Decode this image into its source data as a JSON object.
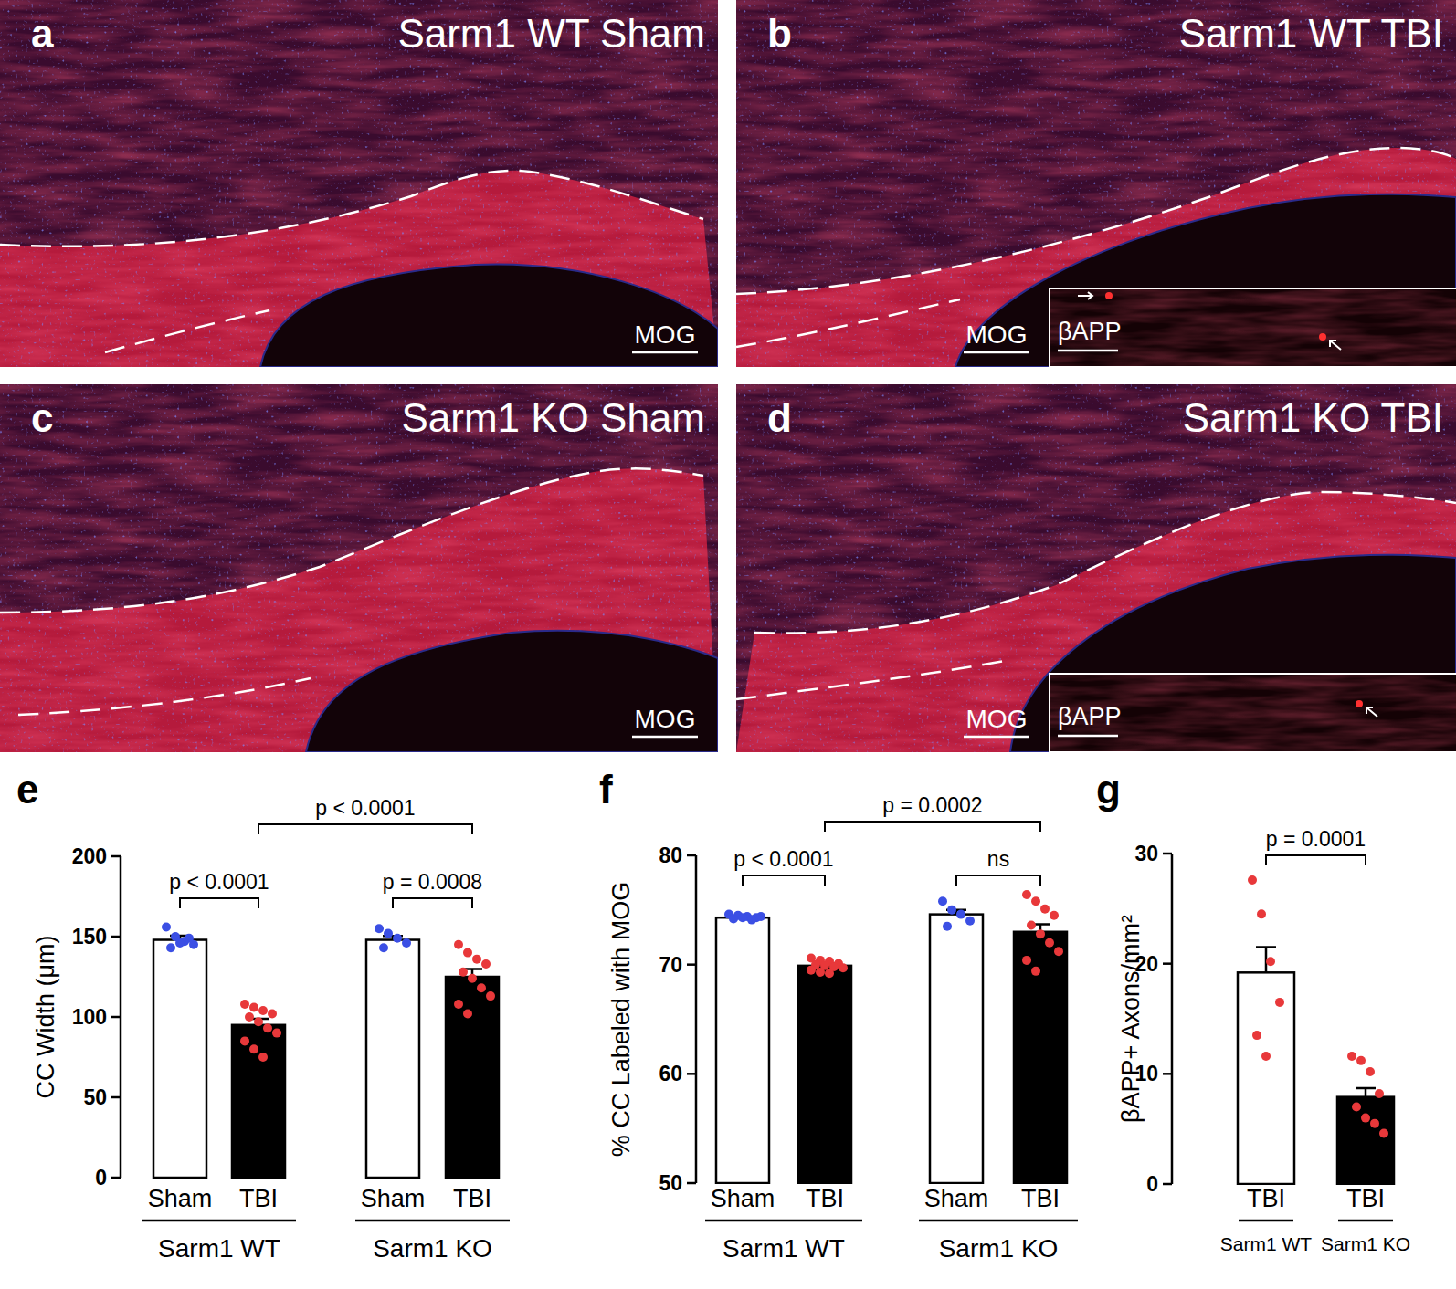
{
  "panels": [
    {
      "label": "a",
      "title": "Sarm1 WT Sham",
      "stain": "MOG"
    },
    {
      "label": "b",
      "title": "Sarm1 WT TBI",
      "stain": "MOG",
      "inset": "βAPP"
    },
    {
      "label": "c",
      "title": "Sarm1 KO Sham",
      "stain": "MOG"
    },
    {
      "label": "d",
      "title": "Sarm1 KO TBI",
      "stain": "MOG",
      "inset": "βAPP"
    }
  ],
  "chart_data": [
    {
      "type": "bar",
      "panel_label": "e",
      "y_label": "CC Width (μm)",
      "categories": [
        "Sham",
        "TBI",
        "Sham",
        "TBI"
      ],
      "group_labels": [
        "Sarm1 WT",
        "Sarm1 KO"
      ],
      "values": [
        148,
        95,
        148,
        125
      ],
      "errors": [
        2.5,
        3.8,
        2.4,
        4.8
      ],
      "colors": [
        "#ffffff",
        "#000000",
        "#ffffff",
        "#000000"
      ],
      "points": [
        [
          156,
          150,
          147,
          145,
          143,
          146,
          149
        ],
        [
          108,
          106,
          104,
          102,
          100,
          97,
          93,
          90,
          85,
          80,
          75
        ],
        [
          155,
          152,
          149,
          146,
          143
        ],
        [
          145,
          140,
          136,
          133,
          128,
          124,
          118,
          113,
          108,
          102
        ]
      ],
      "point_colors": [
        "#3b4fe4",
        "#e8383a",
        "#3b4fe4",
        "#e8383a"
      ],
      "comparisons": [
        {
          "from": 0,
          "to": 1,
          "label": "p < 0.0001"
        },
        {
          "from": 2,
          "to": 3,
          "label": "p = 0.0008"
        },
        {
          "from": 1,
          "to": 3,
          "label": "p < 0.0001"
        }
      ],
      "ylim": [
        0,
        200
      ],
      "yticks": [
        0,
        50,
        100,
        150,
        200
      ]
    },
    {
      "type": "bar",
      "panel_label": "f",
      "y_label": "% CC Labeled with MOG",
      "categories": [
        "Sham",
        "TBI",
        "Sham",
        "TBI"
      ],
      "group_labels": [
        "Sarm1 WT",
        "Sarm1 KO"
      ],
      "values": [
        74.3,
        69.9,
        74.6,
        73.0
      ],
      "errors": [
        0.1,
        0.2,
        0.4,
        0.7
      ],
      "colors": [
        "#ffffff",
        "#000000",
        "#ffffff",
        "#000000"
      ],
      "points": [
        [
          74.6,
          74.5,
          74.4,
          74.3,
          74.2,
          74.3,
          74.1,
          74.4
        ],
        [
          70.6,
          70.4,
          70.3,
          70.1,
          70.0,
          69.9,
          69.8,
          69.7,
          69.5,
          69.3,
          69.2
        ],
        [
          75.8,
          75.0,
          74.6,
          74.0,
          73.5
        ],
        [
          76.4,
          75.8,
          75.1,
          74.5,
          73.6,
          72.8,
          72.0,
          71.2,
          70.4,
          69.4
        ]
      ],
      "point_colors": [
        "#3b4fe4",
        "#e8383a",
        "#3b4fe4",
        "#e8383a"
      ],
      "comparisons": [
        {
          "from": 0,
          "to": 1,
          "label": "p < 0.0001"
        },
        {
          "from": 2,
          "to": 3,
          "label": "ns"
        },
        {
          "from": 1,
          "to": 3,
          "label": "p = 0.0002"
        }
      ],
      "ylim": [
        50,
        80
      ],
      "yticks": [
        50,
        60,
        70,
        80
      ]
    },
    {
      "type": "bar",
      "panel_label": "g",
      "y_label": "βAPP+ Axons/mm²",
      "categories": [
        "TBI",
        "TBI"
      ],
      "group_labels": [
        "Sarm1 WT",
        "Sarm1 KO"
      ],
      "values": [
        19.2,
        7.9
      ],
      "errors": [
        2.3,
        0.8
      ],
      "colors": [
        "#ffffff",
        "#000000"
      ],
      "points": [
        [
          27.6,
          24.5,
          20.2,
          16.5,
          13.5,
          11.6
        ],
        [
          11.6,
          11.2,
          10.2,
          8.2,
          7.0,
          6.0,
          5.5,
          4.6
        ]
      ],
      "point_colors": [
        "#e8383a",
        "#e8383a"
      ],
      "comparisons": [
        {
          "from": 0,
          "to": 1,
          "label": "p = 0.0001"
        }
      ],
      "ylim": [
        0,
        30
      ],
      "yticks": [
        0,
        10,
        20,
        30
      ]
    }
  ]
}
